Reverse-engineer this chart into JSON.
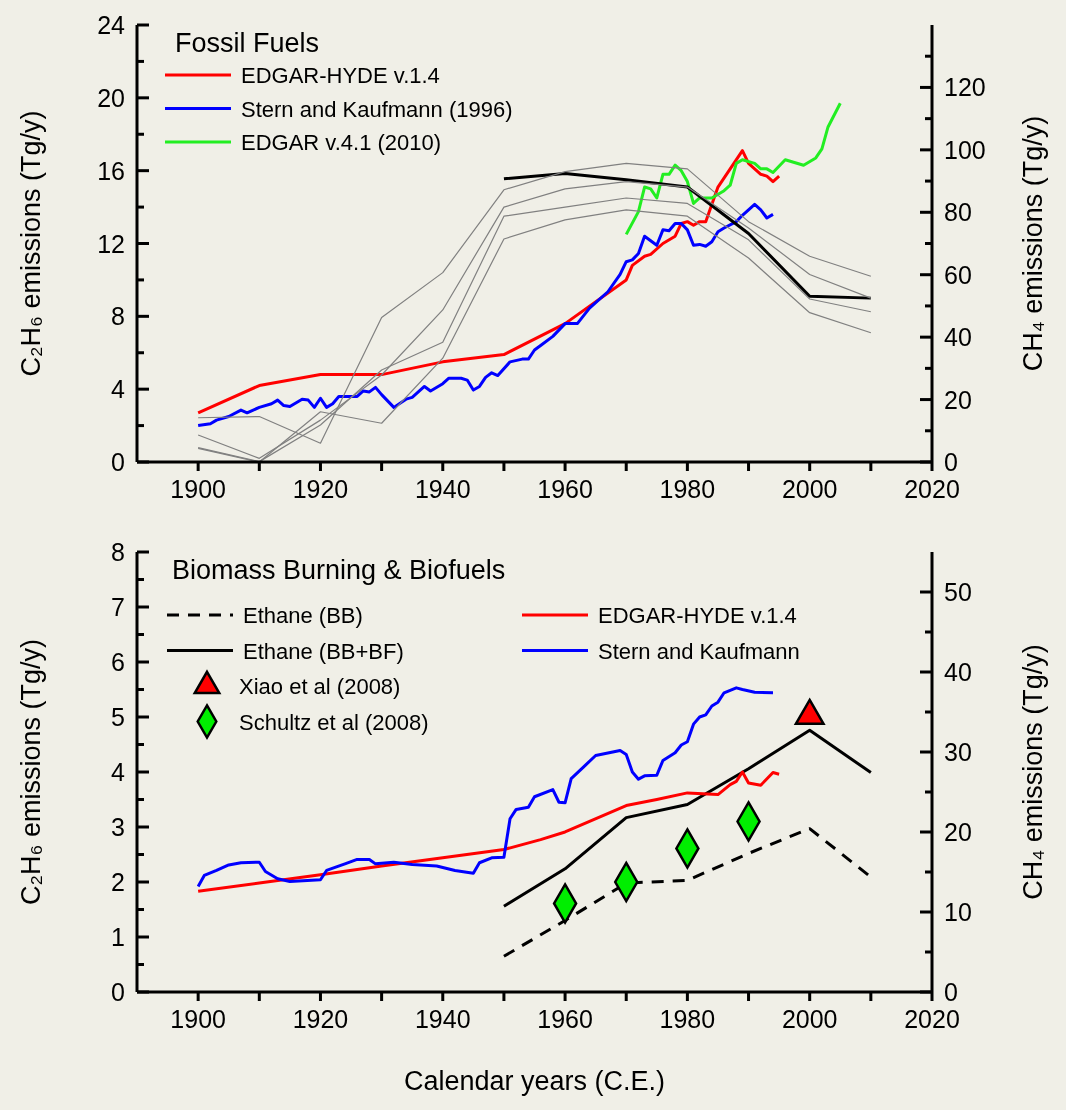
{
  "chart_data": [
    {
      "type": "line",
      "title": "Fossil Fuels",
      "ylabel": "C₂H₆ emissions (Tg/y)",
      "y2label": "CH₄ emissions (Tg/y)",
      "legend": "top left",
      "marker": "none",
      "line_style": "solid",
      "xlim": [
        1890,
        2020
      ],
      "xticks": [
        1900,
        {
          "value": 1910,
          "label": null
        },
        1920,
        {
          "value": 1930,
          "label": null
        },
        1940,
        {
          "value": 1950,
          "label": null
        },
        1960,
        {
          "value": 1970,
          "label": null
        },
        1980,
        {
          "value": 1990,
          "label": null
        },
        2000,
        {
          "value": 2010,
          "label": null
        },
        2020
      ],
      "ylim": [
        0,
        24
      ],
      "yticks": [
        0,
        {
          "value": 2,
          "label": null
        },
        4,
        {
          "value": 6,
          "label": null
        },
        8,
        {
          "value": 10,
          "label": null
        },
        12,
        {
          "value": 14,
          "label": null
        },
        16,
        {
          "value": 18,
          "label": null
        },
        20,
        {
          "value": 22,
          "label": null
        },
        24
      ],
      "y2lim": [
        0,
        140
      ],
      "y2ticks": [
        0,
        {
          "value": 10,
          "label": null
        },
        20,
        {
          "value": 30,
          "label": null
        },
        40,
        {
          "value": 50,
          "label": null
        },
        60,
        {
          "value": 70,
          "label": null
        },
        80,
        {
          "value": 90,
          "label": null
        },
        100,
        {
          "value": 110,
          "label": null
        },
        120,
        {
          "value": 130,
          "label": null
        }
      ],
      "series": [
        {
          "name": "EDGAR-HYDE v.1.4",
          "color": "#ff0000",
          "x": [
            1900,
            1910,
            1920,
            1930,
            1940,
            1950,
            1960,
            1970,
            1971,
            1973,
            1974,
            1976,
            1978,
            1979,
            1980,
            1981,
            1982,
            1983,
            1985,
            1989,
            1990,
            1992,
            1993,
            1994,
            1995
          ],
          "values": [
            2.7,
            4.2,
            4.8,
            4.8,
            5.5,
            5.9,
            7.6,
            10.0,
            10.8,
            11.3,
            11.4,
            12.0,
            12.4,
            13.1,
            13.2,
            13.0,
            13.2,
            13.2,
            15.1,
            17.1,
            16.4,
            15.8,
            15.7,
            15.4,
            15.7
          ]
        },
        {
          "name": "Stern and Kaufmann (1996)",
          "color": "#0000ff",
          "x": [
            1900,
            1902,
            1903,
            1905,
            1907,
            1908,
            1910,
            1912,
            1913,
            1914,
            1915,
            1917,
            1918,
            1919,
            1920,
            1921,
            1922,
            1923,
            1926,
            1927,
            1928,
            1929,
            1930,
            1932,
            1934,
            1935,
            1937,
            1938,
            1940,
            1941,
            1943,
            1944,
            1945,
            1946,
            1947,
            1948,
            1949,
            1951,
            1953,
            1954,
            1955,
            1956,
            1958,
            1960,
            1962,
            1964,
            1967,
            1969,
            1970,
            1971,
            1972,
            1973,
            1975,
            1976,
            1977,
            1978,
            1979,
            1980,
            1981,
            1982,
            1983,
            1984,
            1985,
            1986,
            1988,
            1989,
            1991,
            1992,
            1993,
            1994
          ],
          "values": [
            2.0,
            2.1,
            2.3,
            2.5,
            2.85,
            2.7,
            3.0,
            3.2,
            3.4,
            3.1,
            3.05,
            3.45,
            3.4,
            3.0,
            3.5,
            3.0,
            3.2,
            3.6,
            3.6,
            3.9,
            3.85,
            4.1,
            3.7,
            3.0,
            3.45,
            3.55,
            4.15,
            3.9,
            4.3,
            4.6,
            4.6,
            4.5,
            3.95,
            4.15,
            4.65,
            4.9,
            4.75,
            5.5,
            5.65,
            5.65,
            6.15,
            6.4,
            6.9,
            7.6,
            7.6,
            8.45,
            9.35,
            10.3,
            11.0,
            11.1,
            11.45,
            12.4,
            11.9,
            12.75,
            12.7,
            13.1,
            13.1,
            12.75,
            11.9,
            11.95,
            11.85,
            12.1,
            12.65,
            12.85,
            13.2,
            13.55,
            14.15,
            13.85,
            13.4,
            13.6
          ]
        },
        {
          "name": "EDGAR v.4.1 (2010)",
          "color": "#22ee22",
          "x": [
            1970,
            1972,
            1973,
            1974,
            1975,
            1976,
            1977,
            1978,
            1979,
            1980,
            1981,
            1982,
            1984,
            1986,
            1987,
            1988,
            1989,
            1991,
            1992,
            1993,
            1994,
            1996,
            1999,
            2001,
            2002,
            2003,
            2005
          ],
          "values": [
            12.5,
            13.75,
            15.1,
            15.0,
            14.5,
            15.8,
            15.8,
            16.3,
            16.0,
            15.4,
            14.2,
            14.5,
            14.5,
            14.9,
            15.2,
            16.4,
            16.6,
            16.4,
            16.1,
            16.1,
            15.9,
            16.6,
            16.3,
            16.7,
            17.2,
            18.4,
            19.7
          ]
        },
        {
          "color": "#000000",
          "x": [
            1950,
            1960,
            1970,
            1980,
            1990,
            2000,
            2010
          ],
          "values": [
            15.55,
            15.85,
            15.5,
            15.1,
            12.55,
            9.1,
            9.0
          ]
        },
        {
          "color": "#808080",
          "x": [
            1900,
            1910,
            1920,
            1930,
            1940,
            1950,
            1960,
            1970,
            1980,
            1990,
            2000,
            2010
          ],
          "values": [
            2.43,
            2.5,
            1.03,
            7.93,
            10.4,
            14.95,
            15.95,
            16.4,
            16.1,
            13.2,
            11.3,
            10.2
          ]
        },
        {
          "color": "#808080",
          "x": [
            1900,
            1910,
            1920,
            1930,
            1940,
            1950,
            1960,
            1970,
            1980,
            1990,
            2000,
            2010
          ],
          "values": [
            1.48,
            0.2,
            2.3,
            4.78,
            8.35,
            14.0,
            15.0,
            15.4,
            15.1,
            12.85,
            10.3,
            9.0
          ]
        },
        {
          "color": "#808080",
          "x": [
            1900,
            1910,
            1920,
            1930,
            1940,
            1950,
            1960,
            1970,
            1980,
            1990,
            2000,
            2010
          ],
          "values": [
            0.79,
            0.02,
            2.03,
            5.05,
            6.58,
            13.5,
            14.0,
            14.5,
            14.2,
            12.2,
            8.95,
            8.25
          ]
        },
        {
          "color": "#808080",
          "x": [
            1900,
            1910,
            1920,
            1930,
            1940,
            1950,
            1960,
            1970,
            1980,
            1990,
            2000,
            2010
          ],
          "values": [
            0.75,
            0.0,
            2.76,
            2.13,
            5.7,
            12.25,
            13.3,
            13.85,
            13.5,
            11.2,
            8.2,
            7.1
          ]
        }
      ]
    },
    {
      "type": "line",
      "title": "Biomass Burning & Biofuels",
      "xlabel": "Calendar years (C.E.)",
      "ylabel": "C₂H₆ emissions (Tg/y)",
      "y2label": "CH₄ emissions (Tg/y)",
      "legend": "top",
      "marker": "none",
      "line_style": "solid",
      "xlim": [
        1890,
        2020
      ],
      "xticks": [
        1900,
        {
          "value": 1910,
          "label": null
        },
        1920,
        {
          "value": 1930,
          "label": null
        },
        1940,
        {
          "value": 1950,
          "label": null
        },
        1960,
        {
          "value": 1970,
          "label": null
        },
        1980,
        {
          "value": 1990,
          "label": null
        },
        2000,
        {
          "value": 2010,
          "label": null
        },
        2020
      ],
      "ylim": [
        0,
        8
      ],
      "yticks": [
        0,
        {
          "value": 0.5,
          "label": null
        },
        1,
        {
          "value": 1.5,
          "label": null
        },
        2,
        {
          "value": 2.5,
          "label": null
        },
        3,
        {
          "value": 3.5,
          "label": null
        },
        4,
        {
          "value": 4.5,
          "label": null
        },
        5,
        {
          "value": 5.5,
          "label": null
        },
        6,
        {
          "value": 6.5,
          "label": null
        },
        7,
        {
          "value": 7.5,
          "label": null
        },
        8
      ],
      "y2lim": [
        0,
        55
      ],
      "y2ticks": [
        0,
        {
          "value": 5,
          "label": null
        },
        10,
        {
          "value": 15,
          "label": null
        },
        20,
        {
          "value": 25,
          "label": null
        },
        30,
        {
          "value": 35,
          "label": null
        },
        40,
        {
          "value": 45,
          "label": null
        },
        50
      ],
      "series": [
        {
          "name": "Ethane (BB)",
          "color": "#000000",
          "line_style": "dashed",
          "x": [
            1950,
            1960,
            1970,
            1980,
            1990,
            2000,
            2010
          ],
          "values": [
            0.65,
            1.3,
            1.98,
            2.03,
            2.52,
            2.97,
            2.09
          ]
        },
        {
          "name": "Ethane (BB+BF)",
          "color": "#000000",
          "x": [
            1950,
            1960,
            1970,
            1980,
            1990,
            2000,
            2010
          ],
          "values": [
            1.56,
            2.24,
            3.17,
            3.41,
            4.06,
            4.76,
            3.99
          ]
        },
        {
          "name": "EDGAR-HYDE v.1.4",
          "color": "#ff0000",
          "x": [
            1900,
            1910,
            1920,
            1930,
            1940,
            1950,
            1956,
            1960,
            1970,
            1975,
            1980,
            1985,
            1987,
            1988,
            1989,
            1990,
            1992,
            1994,
            1995
          ],
          "values": [
            1.83,
            1.98,
            2.13,
            2.29,
            2.44,
            2.59,
            2.77,
            2.91,
            3.39,
            3.5,
            3.62,
            3.59,
            3.77,
            3.83,
            4.0,
            3.8,
            3.76,
            3.99,
            3.96
          ]
        },
        {
          "name": "Stern and Kaufmann",
          "color": "#0000ff",
          "x": [
            1900,
            1901,
            1903,
            1905,
            1907,
            1910,
            1911,
            1913,
            1915,
            1920,
            1921,
            1924,
            1926,
            1928,
            1929,
            1932,
            1935,
            1939,
            1942,
            1945,
            1946,
            1948,
            1950,
            1951,
            1952,
            1954,
            1955,
            1958,
            1959,
            1960,
            1961,
            1963,
            1965,
            1969,
            1970,
            1971,
            1972,
            1973,
            1975,
            1976,
            1978,
            1979,
            1980,
            1981,
            1982,
            1983,
            1984,
            1985,
            1986,
            1988,
            1989,
            1991,
            1994
          ],
          "values": [
            1.92,
            2.12,
            2.21,
            2.31,
            2.35,
            2.36,
            2.19,
            2.06,
            2.01,
            2.04,
            2.21,
            2.33,
            2.41,
            2.41,
            2.33,
            2.36,
            2.32,
            2.29,
            2.21,
            2.16,
            2.35,
            2.44,
            2.45,
            3.15,
            3.32,
            3.36,
            3.55,
            3.68,
            3.45,
            3.44,
            3.88,
            4.09,
            4.3,
            4.39,
            4.32,
            4.0,
            3.87,
            3.93,
            3.94,
            4.21,
            4.35,
            4.49,
            4.55,
            4.87,
            5.0,
            5.04,
            5.2,
            5.27,
            5.44,
            5.53,
            5.5,
            5.45,
            5.44
          ]
        },
        {
          "name": "Xiao et al (2008)",
          "type": "scatter",
          "marker": "triangle",
          "color": "#ff0000",
          "x": [
            2000
          ],
          "values": [
            5.02
          ]
        },
        {
          "name": "Schultz et al (2008)",
          "type": "scatter",
          "marker": "diamond",
          "color": "#00ee00",
          "x": [
            1960,
            1970,
            1980,
            1990
          ],
          "values": [
            1.61,
            2.0,
            2.61,
            3.1
          ]
        }
      ]
    }
  ]
}
